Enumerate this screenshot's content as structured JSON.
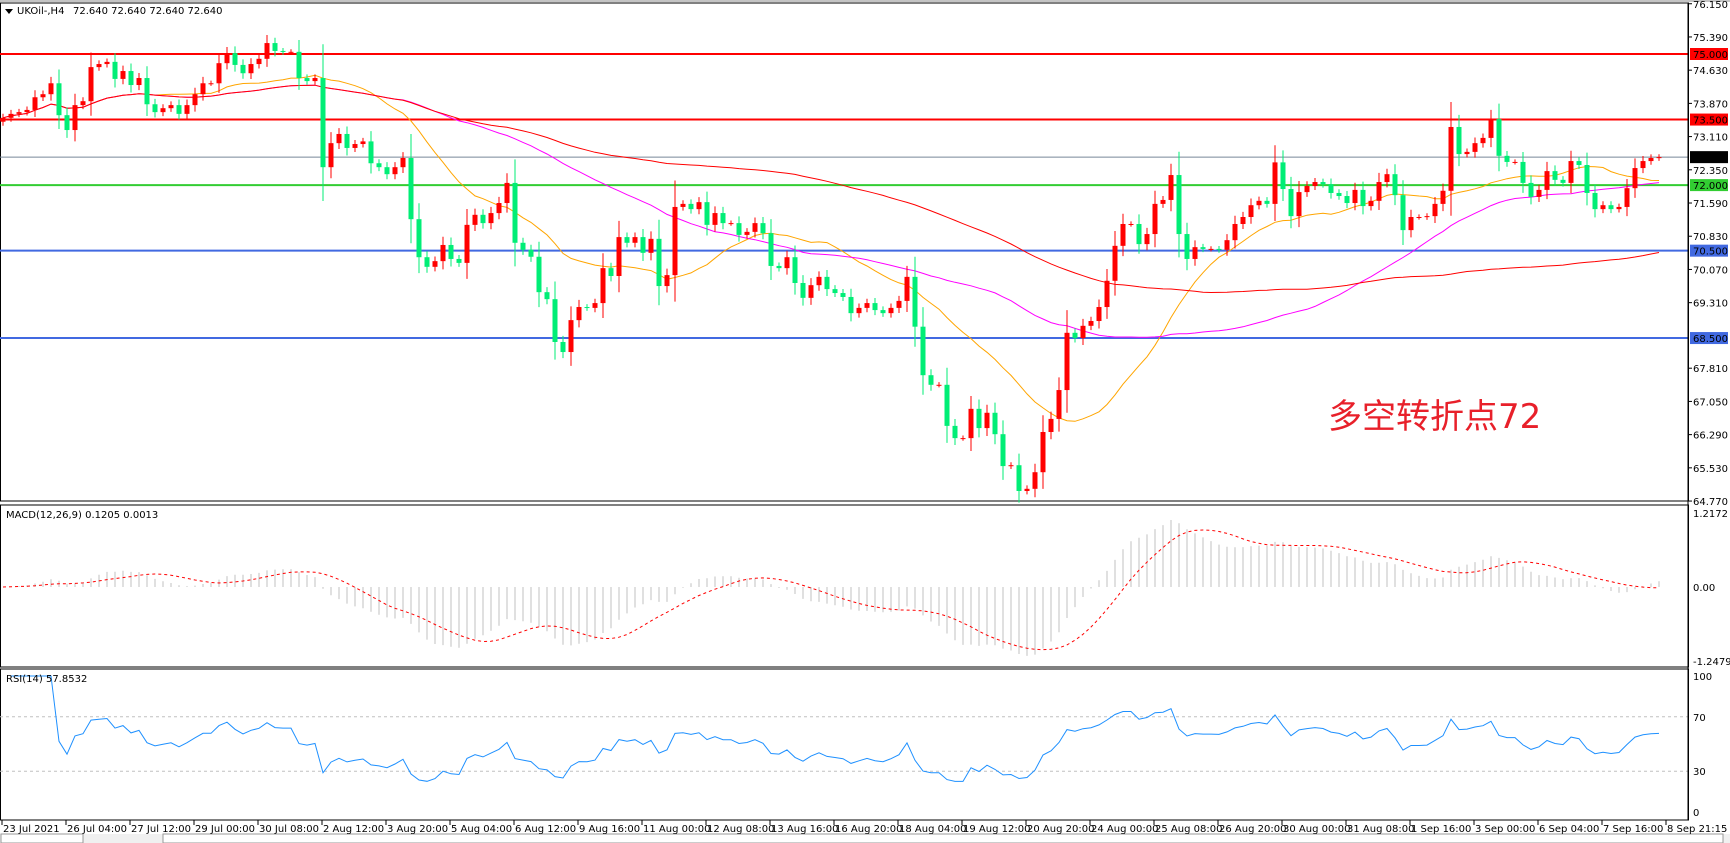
{
  "chart_data": {
    "type": "candlestick",
    "symbol_header": "UKOil-,H4",
    "header_values": "72.640 72.640 72.640 72.640",
    "closes": [
      73.54,
      73.63,
      73.67,
      73.72,
      74.01,
      74.08,
      74.33,
      73.6,
      73.26,
      73.83,
      73.92,
      74.7,
      74.77,
      74.82,
      74.43,
      74.61,
      74.29,
      74.45,
      73.85,
      73.67,
      73.76,
      73.83,
      73.63,
      73.83,
      74.08,
      74.33,
      74.33,
      74.79,
      75.02,
      74.75,
      74.56,
      74.77,
      74.89,
      75.25,
      75.07,
      75.05,
      75.05,
      74.45,
      74.38,
      74.45,
      72.41,
      72.96,
      73.17,
      72.85,
      72.94,
      73.0,
      72.5,
      72.41,
      72.25,
      72.41,
      72.62,
      71.22,
      70.35,
      70.13,
      70.26,
      70.63,
      70.31,
      70.22,
      71.09,
      71.32,
      71.13,
      71.36,
      71.59,
      72.05,
      70.68,
      70.52,
      70.36,
      69.55,
      69.39,
      68.41,
      68.18,
      68.91,
      69.21,
      69.19,
      69.3,
      70.1,
      69.92,
      70.81,
      70.68,
      70.81,
      70.45,
      70.77,
      69.69,
      69.94,
      71.5,
      71.57,
      71.45,
      71.61,
      71.09,
      71.36,
      71.13,
      71.13,
      70.86,
      70.93,
      71.13,
      70.9,
      70.15,
      70.1,
      70.35,
      69.76,
      69.42,
      69.71,
      69.9,
      69.62,
      69.53,
      69.44,
      69.07,
      69.19,
      69.3,
      69.14,
      69.07,
      69.19,
      69.35,
      69.9,
      68.76,
      67.65,
      67.43,
      67.43,
      66.49,
      66.21,
      66.21,
      66.88,
      66.44,
      66.79,
      66.3,
      65.57,
      65.59,
      65.0,
      65.05,
      65.43,
      66.35,
      66.65,
      67.31,
      68.62,
      68.5,
      68.78,
      68.89,
      69.21,
      69.81,
      70.61,
      71.11,
      71.11,
      70.65,
      70.88,
      71.57,
      71.66,
      72.23,
      70.88,
      70.31,
      70.58,
      70.54,
      70.54,
      70.52,
      70.74,
      71.11,
      71.27,
      71.54,
      71.64,
      71.57,
      72.52,
      71.91,
      71.29,
      71.84,
      71.98,
      72.07,
      72.02,
      71.82,
      71.75,
      71.59,
      71.89,
      71.52,
      71.64,
      72.07,
      72.25,
      71.77,
      70.97,
      71.27,
      71.27,
      71.29,
      71.57,
      71.87,
      73.33,
      72.71,
      72.76,
      72.96,
      73.08,
      73.51,
      72.67,
      72.53,
      72.53,
      72.05,
      71.73,
      71.89,
      72.32,
      72.12,
      72.05,
      72.55,
      72.46,
      71.82,
      71.45,
      71.54,
      71.45,
      71.5,
      71.93,
      72.39,
      72.55,
      72.62,
      72.64
    ],
    "first_open": 73.45,
    "price_axis": {
      "min": 64.77,
      "max": 76.15,
      "ticks": [
        "76.150",
        "75.390",
        "74.630",
        "73.870",
        "73.110",
        "72.350",
        "71.590",
        "70.830",
        "70.070",
        "69.310",
        "67.810",
        "67.050",
        "66.290",
        "65.530",
        "64.770"
      ]
    },
    "time_axis": {
      "ticks": [
        "23 Jul 2021",
        "26 Jul 04:00",
        "27 Jul 12:00",
        "29 Jul 00:00",
        "30 Jul 08:00",
        "2 Aug 12:00",
        "3 Aug 20:00",
        "5 Aug 04:00",
        "6 Aug 12:00",
        "9 Aug 16:00",
        "11 Aug 00:00",
        "12 Aug 08:00",
        "13 Aug 16:00",
        "16 Aug 20:00",
        "18 Aug 04:00",
        "19 Aug 12:00",
        "20 Aug 20:00",
        "24 Aug 00:00",
        "25 Aug 08:00",
        "26 Aug 20:00",
        "30 Aug 00:00",
        "31 Aug 08:00",
        "1 Sep 16:00",
        "3 Sep 00:00",
        "6 Sep 04:00",
        "7 Sep 16:00",
        "8 Sep 21:15"
      ],
      "bars_per_tick": 8
    },
    "levels": [
      {
        "value": 75.0,
        "label": "75.000",
        "color": "#ff0000"
      },
      {
        "value": 73.5,
        "label": "73.500",
        "color": "#ff0000"
      },
      {
        "value": 72.0,
        "label": "72.000",
        "color": "#32cd32"
      },
      {
        "value": 70.5,
        "label": "70.500",
        "color": "#4169e1"
      },
      {
        "value": 68.5,
        "label": "68.500",
        "color": "#4169e1"
      }
    ],
    "current_price": {
      "value": 72.64,
      "label": "72.640",
      "color": "#000000",
      "line_color": "#778899"
    },
    "colors": {
      "up": "#ff0000",
      "down": "#00ee76",
      "ma_fast": "#ffa500",
      "ma_mid": "#ff00ff",
      "ma_slow": "#ff0000",
      "macd_hist": "#c0c0c0",
      "macd_signal": "#ff0000",
      "rsi": "#1e90ff"
    },
    "annotation": "多空转折点72",
    "macd": {
      "header": "MACD(12,26,9) 0.1205 0.0013",
      "fast": 12,
      "slow": 26,
      "signal": 9,
      "axis": {
        "max": 1.2172,
        "min": -1.2479,
        "ticks": [
          "1.2172",
          "0.00",
          "-1.2479"
        ]
      }
    },
    "rsi": {
      "header": "RSI(14) 57.8532",
      "period": 14,
      "levels": [
        30,
        70
      ],
      "axis_ticks": [
        "100",
        "70",
        "30",
        "0"
      ]
    }
  }
}
